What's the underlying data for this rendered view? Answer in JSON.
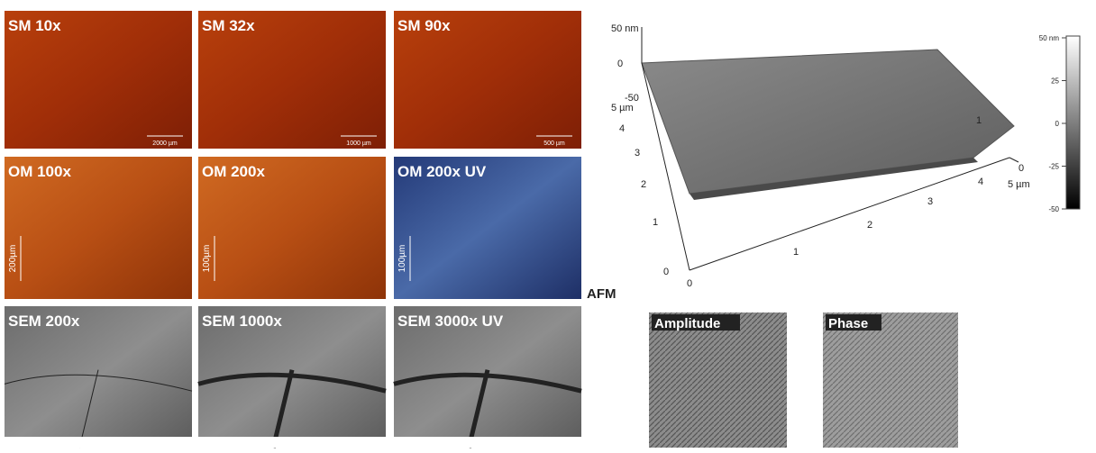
{
  "panels": [
    {
      "label": "SM 10x",
      "scale": "2000 µm"
    },
    {
      "label": "SM 32x",
      "scale": "1000 µm"
    },
    {
      "label": "SM 90x",
      "scale": "500 µm"
    },
    {
      "label": "OM 100x",
      "scale": "200µm"
    },
    {
      "label": "OM 200x",
      "scale": "100µm"
    },
    {
      "label": "OM 200x UV",
      "scale": "100µm"
    },
    {
      "label": "SEM 200x"
    },
    {
      "label": "SEM 1000x"
    },
    {
      "label": "SEM 3000x UV"
    }
  ],
  "afm": {
    "label": "AFM",
    "z_axis": [
      "50 nm",
      "0",
      "-50"
    ],
    "left_axis": [
      "5 µm",
      "4",
      "3",
      "2",
      "1",
      "0"
    ],
    "front_axis": [
      "0",
      "1",
      "2",
      "3",
      "4",
      "5 µm"
    ],
    "right_axis": [
      "1",
      "0"
    ],
    "colorbar": [
      "50 nm",
      "25",
      "0",
      "-25",
      "-50"
    ],
    "insets": [
      "Amplitude",
      "Phase"
    ]
  }
}
